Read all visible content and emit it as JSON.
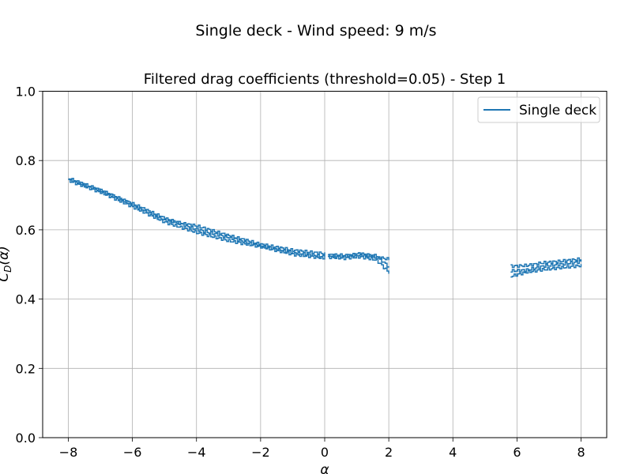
{
  "figure": {
    "suptitle": "Single deck - Wind speed: 9 m/s"
  },
  "chart_data": {
    "type": "line",
    "title": "Filtered drag coefficients (threshold=0.05) - Step 1",
    "xlabel": "α",
    "ylabel": "C_D(α)",
    "ylabel_base": "C",
    "ylabel_sub": "D",
    "ylabel_arg": "(α)",
    "xlim": [
      -8.8,
      8.8
    ],
    "ylim": [
      0.0,
      1.0
    ],
    "xticks": [
      -8,
      -6,
      -4,
      -2,
      0,
      2,
      4,
      6,
      8
    ],
    "xtick_labels": [
      "−8",
      "−6",
      "−4",
      "−2",
      "0",
      "2",
      "4",
      "6",
      "8"
    ],
    "yticks": [
      0.0,
      0.2,
      0.4,
      0.6,
      0.8,
      1.0
    ],
    "ytick_labels": [
      "0.0",
      "0.2",
      "0.4",
      "0.6",
      "0.8",
      "1.0"
    ],
    "grid": true,
    "legend_position": "top-right",
    "series": [
      {
        "name": "Single deck",
        "color": "#1f77b4",
        "segments": [
          {
            "x_range": [
              -8.0,
              0.0
            ],
            "passes": [
              {
                "x": [
                  -8.0,
                  -7.0,
                  -6.0,
                  -5.0,
                  -4.0,
                  -3.0,
                  -2.0,
                  -1.0,
                  0.0
                ],
                "y": [
                  0.745,
                  0.712,
                  0.675,
                  0.633,
                  0.601,
                  0.578,
                  0.553,
                  0.535,
                  0.522
                ]
              },
              {
                "x": [
                  -8.0,
                  -7.0,
                  -6.0,
                  -5.0,
                  -4.0,
                  -3.0,
                  -2.0,
                  -1.0,
                  0.0
                ],
                "y": [
                  0.742,
                  0.708,
                  0.666,
                  0.622,
                  0.592,
                  0.568,
                  0.551,
                  0.529,
                  0.518
                ]
              },
              {
                "x": [
                  -8.0,
                  -7.0,
                  -6.0,
                  -5.0,
                  -4.0,
                  -3.0,
                  -2.0,
                  -1.0,
                  0.0
                ],
                "y": [
                  0.748,
                  0.714,
                  0.671,
                  0.628,
                  0.611,
                  0.583,
                  0.558,
                  0.541,
                  0.531
                ]
              }
            ]
          },
          {
            "x_range": [
              0.1,
              2.0
            ],
            "passes": [
              {
                "x": [
                  0.1,
                  0.6,
                  1.1,
                  1.6,
                  2.0
                ],
                "y": [
                  0.525,
                  0.523,
                  0.532,
                  0.521,
                  0.515
                ]
              },
              {
                "x": [
                  0.1,
                  0.6,
                  1.1,
                  1.6,
                  2.0
                ],
                "y": [
                  0.521,
                  0.518,
                  0.522,
                  0.513,
                  0.476
                ]
              },
              {
                "x": [
                  0.1,
                  0.6,
                  1.1,
                  1.6,
                  2.0
                ],
                "y": [
                  0.528,
                  0.526,
                  0.527,
                  0.525,
                  0.492
                ]
              }
            ]
          },
          {
            "x_range": [
              5.8,
              8.0
            ],
            "passes": [
              {
                "x": [
                  5.8,
                  6.3,
                  6.8,
                  7.3,
                  8.0
                ],
                "y": [
                  0.495,
                  0.497,
                  0.505,
                  0.509,
                  0.516
                ]
              },
              {
                "x": [
                  5.8,
                  6.3,
                  6.8,
                  7.3,
                  8.0
                ],
                "y": [
                  0.466,
                  0.478,
                  0.485,
                  0.49,
                  0.497
                ]
              },
              {
                "x": [
                  5.8,
                  6.3,
                  6.8,
                  7.3,
                  8.0
                ],
                "y": [
                  0.481,
                  0.484,
                  0.495,
                  0.5,
                  0.508
                ]
              }
            ]
          }
        ]
      }
    ]
  }
}
